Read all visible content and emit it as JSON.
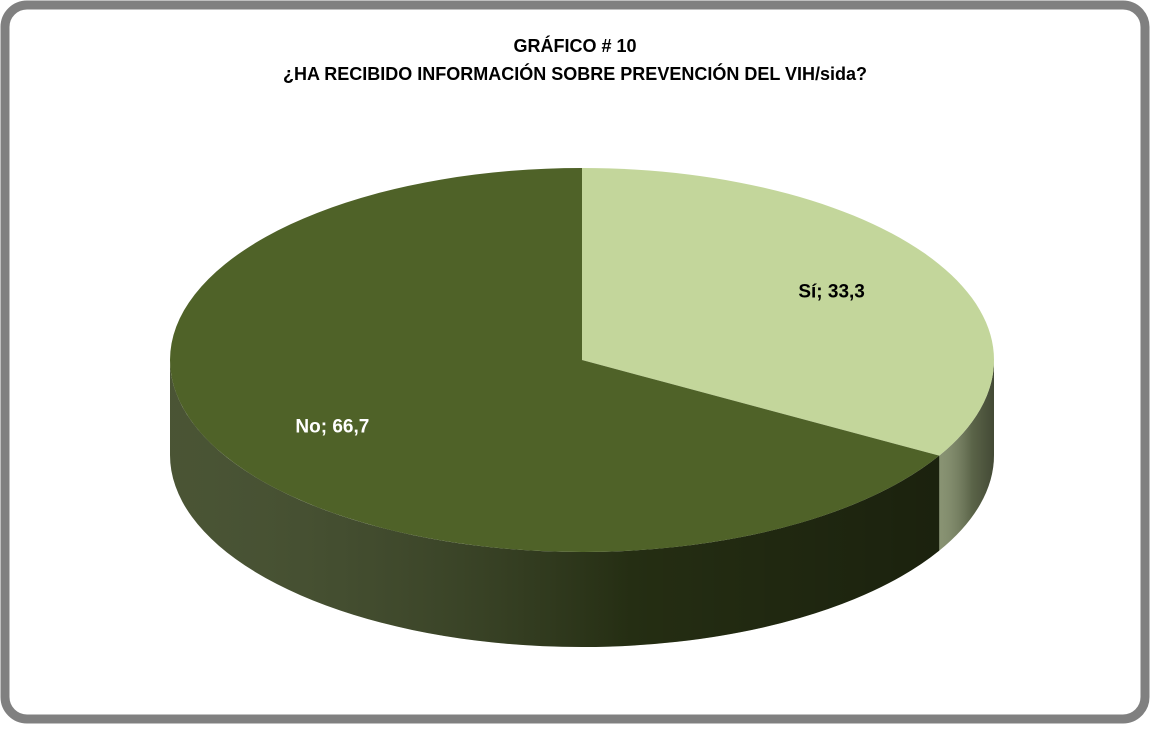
{
  "chart_data": {
    "type": "pie",
    "title": "GRÁFICO # 10",
    "subtitle": "¿HA RECIBIDO INFORMACIÓN SOBRE PREVENCIÓN DEL VIH/sida?",
    "categories": [
      "Sí",
      "No"
    ],
    "values": [
      33.3,
      66.7
    ],
    "value_labels": [
      "Sí; 33,3",
      "No; 66,7"
    ],
    "colors": [
      "#c3d69b",
      "#4f6228"
    ]
  }
}
